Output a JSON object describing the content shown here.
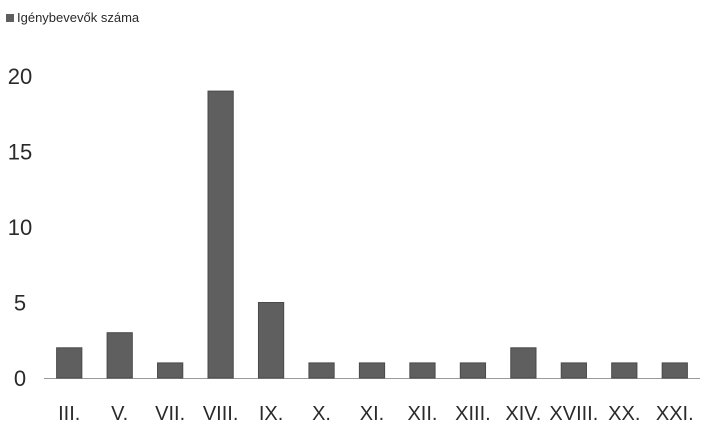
{
  "chart_data": {
    "type": "bar",
    "categories": [
      "III.",
      "V.",
      "VII.",
      "VIII.",
      "IX.",
      "X.",
      "XI.",
      "XII.",
      "XIII.",
      "XIV.",
      "XVIII.",
      "XX.",
      "XXI."
    ],
    "series": [
      {
        "name": "Igénybevevők száma",
        "values": [
          2,
          3,
          1,
          19,
          5,
          1,
          1,
          1,
          1,
          2,
          1,
          1,
          1
        ]
      }
    ],
    "yticks": [
      "0",
      "5",
      "10",
      "15",
      "20"
    ],
    "ylim": [
      0,
      20
    ],
    "grid": false,
    "legend": "top-left",
    "colors": {
      "bar": "#5f5f5f",
      "bar_edge": "#4a4a4a",
      "axis": "#9a9a9a",
      "text": "#2a2a2a"
    }
  }
}
